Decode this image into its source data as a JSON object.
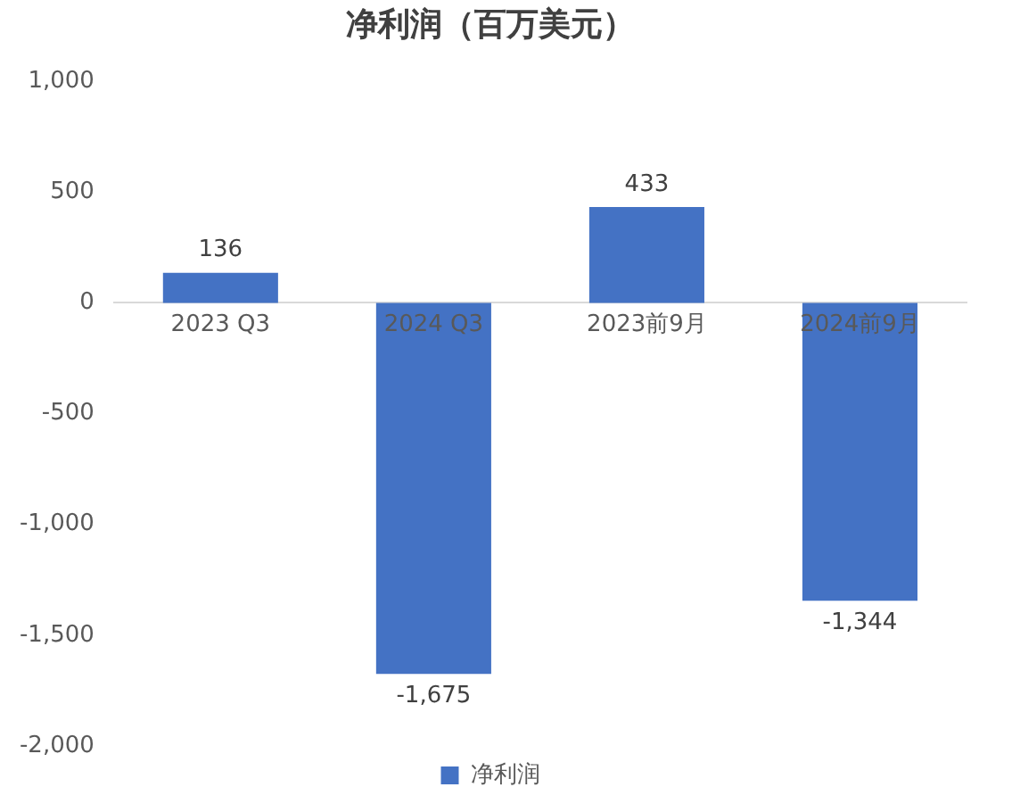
{
  "chart_data": {
    "type": "bar",
    "title": "净利润（百万美元）",
    "categories": [
      "2023 Q3",
      "2024 Q3",
      "2023前9月",
      "2024前9月"
    ],
    "series": [
      {
        "name": "净利润",
        "color": "#4472c4",
        "values": [
          136,
          -1675,
          433,
          -1344
        ],
        "value_labels": [
          "136",
          "-1,675",
          "433",
          "-1,344"
        ]
      }
    ],
    "ylim": [
      -2000,
      1000
    ],
    "yticks": [
      {
        "value": -2000,
        "label": "-2,000"
      },
      {
        "value": -1500,
        "label": "-1,500"
      },
      {
        "value": -1000,
        "label": "-1,000"
      },
      {
        "value": -500,
        "label": "-500"
      },
      {
        "value": 0,
        "label": "0"
      },
      {
        "value": 500,
        "label": "500"
      },
      {
        "value": 1000,
        "label": "1,000"
      }
    ],
    "grid": false,
    "legend": "bottom"
  }
}
